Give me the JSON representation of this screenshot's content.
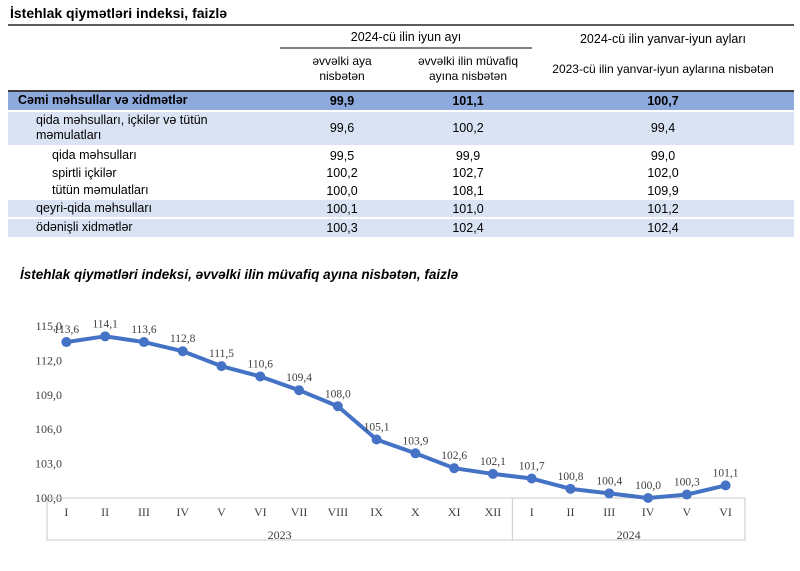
{
  "doc": {
    "title": "İstehlak qiymətləri indeksi, faizlə"
  },
  "table": {
    "col_groups": [
      {
        "label": "2024-cü ilin iyun ayı"
      },
      {
        "label": "2024-cü ilin yanvar-iyun ayları"
      }
    ],
    "sub_headers": [
      "əvvəlki aya nisbətən",
      "əvvəlki ilin müvafiq ayına nisbətən",
      "2023-cü ilin yanvar-iyun aylarına nisbətən"
    ],
    "rows": [
      {
        "label": "Cəmi məhsullar və xidmətlər",
        "indent": 0,
        "style": "total",
        "values": [
          "99,9",
          "101,1",
          "100,7"
        ]
      },
      {
        "label": "qida məhsulları, içkilər və tütün məmulatları",
        "indent": 1,
        "style": "band",
        "values": [
          "99,6",
          "100,2",
          "99,4"
        ]
      },
      {
        "label": "qida məhsulları",
        "indent": 2,
        "style": "plain",
        "values": [
          "99,5",
          "99,9",
          "99,0"
        ]
      },
      {
        "label": "spirtli içkilər",
        "indent": 2,
        "style": "plain",
        "values": [
          "100,2",
          "102,7",
          "102,0"
        ]
      },
      {
        "label": "tütün məmulatları",
        "indent": 2,
        "style": "plain",
        "values": [
          "100,0",
          "108,1",
          "109,9"
        ]
      },
      {
        "label": "qeyri-qida məhsulları",
        "indent": 1,
        "style": "band",
        "values": [
          "100,1",
          "101,0",
          "101,2"
        ]
      },
      {
        "label": "ödənişli xidmətlər",
        "indent": 1,
        "style": "band",
        "values": [
          "100,3",
          "102,4",
          "102,4"
        ]
      }
    ]
  },
  "chart_data": {
    "type": "line",
    "title": "İstehlak qiymətləri indeksi, əvvəlki ilin müvafiq ayına nisbətən, faizlə",
    "x": [
      "I",
      "II",
      "III",
      "IV",
      "V",
      "VI",
      "VII",
      "VIII",
      "IX",
      "X",
      "XI",
      "XII",
      "I",
      "II",
      "III",
      "IV",
      "V",
      "VI"
    ],
    "x_groups": [
      {
        "label": "2023",
        "count": 12
      },
      {
        "label": "2024",
        "count": 6
      }
    ],
    "values": [
      113.6,
      114.1,
      113.6,
      112.8,
      111.5,
      110.6,
      109.4,
      108.0,
      105.1,
      103.9,
      102.6,
      102.1,
      101.7,
      100.8,
      100.4,
      100.0,
      100.3,
      101.1
    ],
    "y_ticks": [
      115.0,
      112.0,
      109.0,
      106.0,
      103.0,
      100.0
    ],
    "ylim": [
      100.0,
      115.0
    ],
    "decimal_separator": ",",
    "grid": false,
    "legend": null
  },
  "colors": {
    "line": "#4472C4",
    "total_row_bg": "#8EA9DB",
    "band_row_bg": "#DAE3F3",
    "title_rule": "#5a5a5a",
    "group_rule": "#808080",
    "axis_box": "#C9C9C9"
  }
}
